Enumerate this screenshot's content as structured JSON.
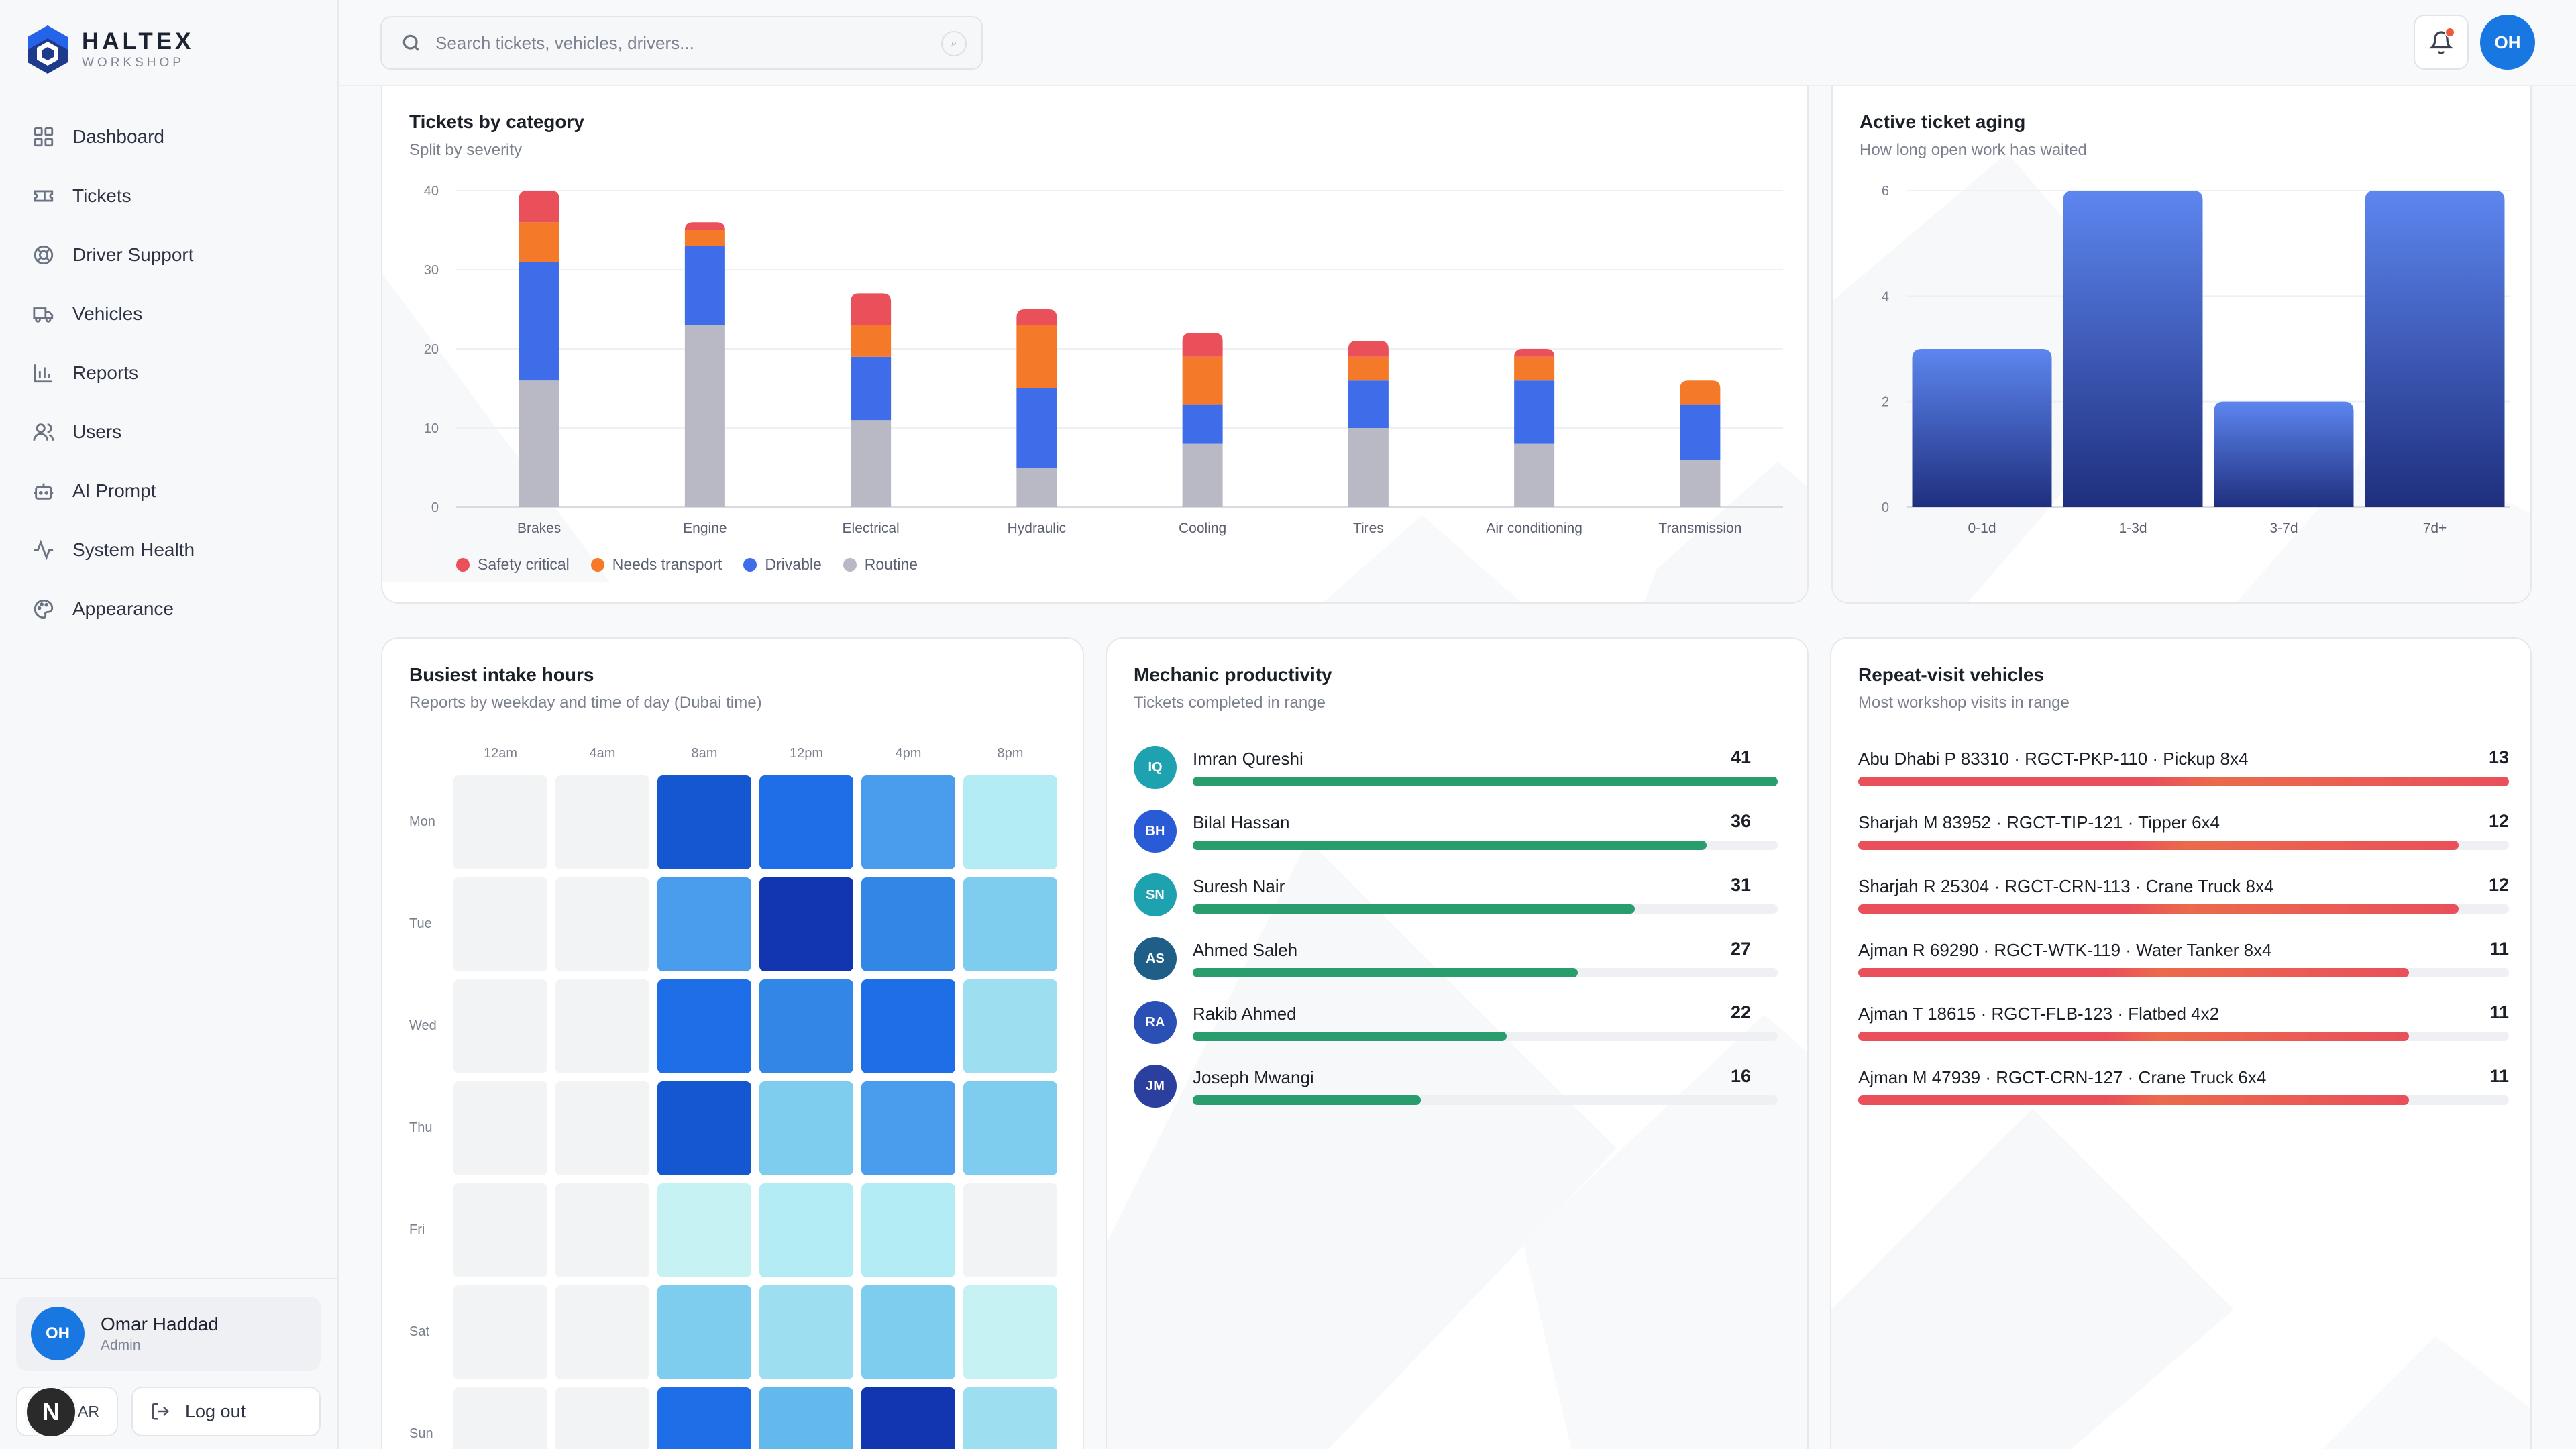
{
  "brand": {
    "name": "HALTEX",
    "tagline": "WORKSHOP"
  },
  "sidebar": {
    "items": [
      {
        "label": "Dashboard",
        "icon": "grid-icon"
      },
      {
        "label": "Tickets",
        "icon": "ticket-icon"
      },
      {
        "label": "Driver Support",
        "icon": "lifebuoy-icon"
      },
      {
        "label": "Vehicles",
        "icon": "truck-icon"
      },
      {
        "label": "Reports",
        "icon": "bar-chart-icon"
      },
      {
        "label": "Users",
        "icon": "users-icon"
      },
      {
        "label": "AI Prompt",
        "icon": "bot-icon"
      },
      {
        "label": "System Health",
        "icon": "activity-icon"
      },
      {
        "label": "Appearance",
        "icon": "palette-icon"
      }
    ],
    "user": {
      "initials": "OH",
      "name": "Omar Haddad",
      "role": "Admin"
    },
    "lang_label": "AR",
    "n_badge": "N",
    "logout_label": "Log out"
  },
  "header": {
    "search_placeholder": "Search tickets, vehicles, drivers...",
    "user_initials": "OH"
  },
  "colors": {
    "safety": "#e9505a",
    "transport": "#f47a2a",
    "drivable": "#3f6ce8",
    "routine": "#b8b9c4",
    "accent": "#1877e0",
    "productivity": "#2a9d6f",
    "repeat": "#e9505a"
  },
  "chart_data": [
    {
      "type": "bar",
      "stacked": true,
      "title": "Tickets by category",
      "subtitle": "Split by severity",
      "categories": [
        "Brakes",
        "Engine",
        "Electrical",
        "Hydraulic",
        "Cooling",
        "Tires",
        "Air conditioning",
        "Transmission"
      ],
      "series": [
        {
          "name": "Routine",
          "values": [
            16,
            23,
            11,
            5,
            8,
            10,
            8,
            6
          ]
        },
        {
          "name": "Drivable",
          "values": [
            15,
            10,
            8,
            10,
            5,
            6,
            8,
            7
          ]
        },
        {
          "name": "Needs transport",
          "values": [
            5,
            2,
            4,
            8,
            6,
            3,
            3,
            3
          ]
        },
        {
          "name": "Safety critical",
          "values": [
            4,
            1,
            4,
            2,
            3,
            2,
            1,
            0
          ]
        }
      ],
      "ylim": [
        0,
        40
      ],
      "yticks": [
        0,
        10,
        20,
        30,
        40
      ],
      "legend": "bottom-left",
      "grid": true
    },
    {
      "type": "bar",
      "title": "Active ticket aging",
      "subtitle": "How long open work has waited",
      "categories": [
        "0-1d",
        "1-3d",
        "3-7d",
        "7d+"
      ],
      "values": [
        3,
        6,
        2,
        6
      ],
      "ylim": [
        0,
        6
      ],
      "yticks": [
        0,
        2,
        4,
        6
      ],
      "grid": true
    },
    {
      "type": "heatmap",
      "title": "Busiest intake hours",
      "subtitle": "Reports by weekday and time of day (Dubai time)",
      "columns": [
        "12am",
        "4am",
        "8am",
        "12pm",
        "4pm",
        "8pm"
      ],
      "rows": [
        "Mon",
        "Tue",
        "Wed",
        "Thu",
        "Fri",
        "Sat",
        "Sun"
      ],
      "values": [
        [
          0,
          0,
          9,
          8,
          6,
          2
        ],
        [
          0,
          0,
          6,
          10,
          7,
          4
        ],
        [
          0,
          0,
          8,
          7,
          8,
          3
        ],
        [
          0,
          0,
          9,
          4,
          6,
          4
        ],
        [
          0,
          0,
          1,
          2,
          2,
          0
        ],
        [
          0,
          0,
          4,
          3,
          4,
          1
        ],
        [
          0,
          0,
          8,
          5,
          10,
          3
        ]
      ]
    }
  ],
  "productivity": {
    "title": "Mechanic productivity",
    "subtitle": "Tickets completed in range",
    "max": 41,
    "rows": [
      {
        "initials": "IQ",
        "name": "Imran Qureshi",
        "value": 41,
        "color": "#1fa2b0"
      },
      {
        "initials": "BH",
        "name": "Bilal Hassan",
        "value": 36,
        "color": "#2a5bd7"
      },
      {
        "initials": "SN",
        "name": "Suresh Nair",
        "value": 31,
        "color": "#1fa2b0"
      },
      {
        "initials": "AS",
        "name": "Ahmed Saleh",
        "value": 27,
        "color": "#1f5e86"
      },
      {
        "initials": "RA",
        "name": "Rakib Ahmed",
        "value": 22,
        "color": "#2a4fb5"
      },
      {
        "initials": "JM",
        "name": "Joseph Mwangi",
        "value": 16,
        "color": "#2a3f9e"
      }
    ]
  },
  "repeat": {
    "title": "Repeat-visit vehicles",
    "subtitle": "Most workshop visits in range",
    "max": 13,
    "rows": [
      {
        "name": "Abu Dhabi P 83310 · RGCT-PKP-110 · Pickup 8x4",
        "value": 13
      },
      {
        "name": "Sharjah M 83952 · RGCT-TIP-121 · Tipper 6x4",
        "value": 12
      },
      {
        "name": "Sharjah R 25304 · RGCT-CRN-113 · Crane Truck 8x4",
        "value": 12
      },
      {
        "name": "Ajman R 69290 · RGCT-WTK-119 · Water Tanker 8x4",
        "value": 11
      },
      {
        "name": "Ajman T 18615 · RGCT-FLB-123 · Flatbed 4x2",
        "value": 11
      },
      {
        "name": "Ajman M 47939 · RGCT-CRN-127 · Crane Truck 6x4",
        "value": 11
      }
    ]
  }
}
